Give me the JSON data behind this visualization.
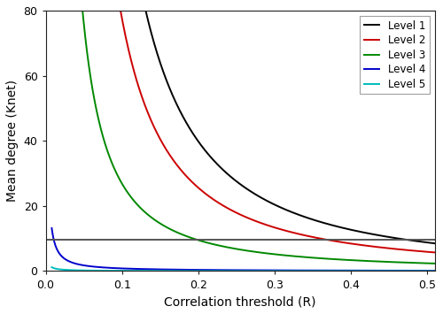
{
  "title": "",
  "xlabel": "Correlation threshold (R)",
  "ylabel": "Mean degree (Knet)",
  "xlim": [
    0.0,
    0.51
  ],
  "ylim": [
    0,
    80
  ],
  "xticks": [
    0.0,
    0.1,
    0.2,
    0.3,
    0.4,
    0.5
  ],
  "yticks": [
    0,
    20,
    40,
    60,
    80
  ],
  "hline_y": 9.5,
  "hline_color": "#555555",
  "background_color": "#ffffff",
  "curves": [
    {
      "label": "Level 1",
      "color": "#000000",
      "A": 2.8,
      "B": 1.65
    },
    {
      "label": "Level 2",
      "color": "#cc0000",
      "A": 1.95,
      "B": 1.6
    },
    {
      "label": "Level 3",
      "color": "#008800",
      "A": 0.85,
      "B": 1.5
    },
    {
      "label": "Level 4",
      "color": "#0000cc",
      "A": 0.065,
      "B": 1.1
    },
    {
      "label": "Level 5",
      "color": "#00bbbb",
      "A": 0.012,
      "B": 0.95
    }
  ],
  "legend_loc": "upper right",
  "legend_fontsize": 8.5,
  "axis_fontsize": 10,
  "tick_fontsize": 9,
  "linewidth": 1.4
}
